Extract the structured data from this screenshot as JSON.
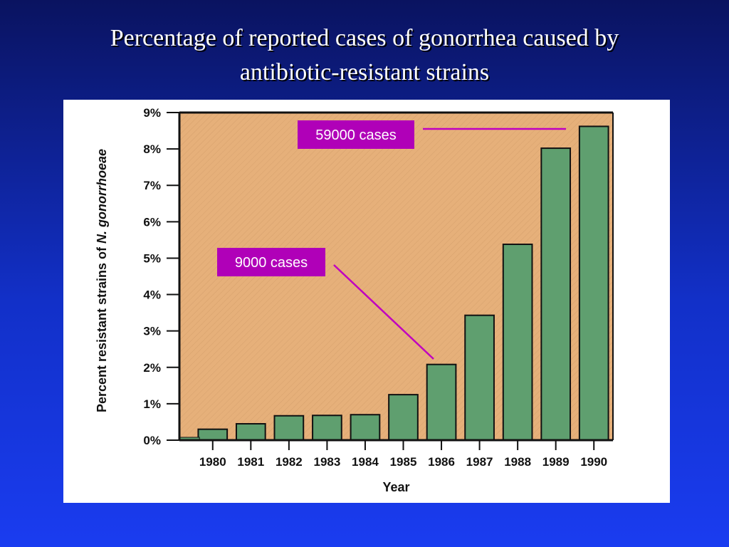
{
  "title_line1": "Percentage of reported cases of gonorrhea caused by",
  "title_line2": "antibiotic-resistant strains",
  "chart_data": {
    "type": "bar",
    "categories": [
      "1980",
      "1981",
      "1982",
      "1983",
      "1984",
      "1985",
      "1986",
      "1987",
      "1988",
      "1989",
      "1990"
    ],
    "values": [
      0.3,
      0.45,
      0.67,
      0.68,
      0.7,
      1.25,
      2.08,
      3.43,
      5.38,
      8.02,
      8.62
    ],
    "yticks": [
      "0%",
      "1%",
      "2%",
      "3%",
      "4%",
      "5%",
      "6%",
      "7%",
      "8%",
      "9%"
    ],
    "ylim": [
      0,
      9
    ],
    "xlabel": "Year",
    "ylabel_prefix": "Percent resistant strains of",
    "ylabel_italic": "N. gonorrhoeae",
    "grid": false,
    "annotations": [
      {
        "text": "9000 cases",
        "category": "1986"
      },
      {
        "text": "59000 cases",
        "category": "1990"
      }
    ]
  },
  "colors": {
    "plot_background": "#e6b07a",
    "bar_fill": "#5f9f6f",
    "callout_fill": "#b000b8",
    "callout_line": "#c000c0"
  }
}
